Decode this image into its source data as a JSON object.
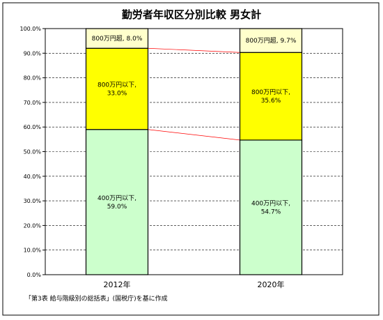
{
  "chart_data": {
    "type": "bar",
    "stacked": true,
    "title": "勤労者年収区分別比較 男女計",
    "categories": [
      "2012年",
      "2020年"
    ],
    "series": [
      {
        "name": "400万円以下",
        "color": "#ccffcc",
        "values": [
          59.0,
          54.7
        ],
        "labels": [
          "400万円以下,\n59.0%",
          "400万円以下,\n54.7%"
        ]
      },
      {
        "name": "800万円以下",
        "color": "#ffff00",
        "values": [
          33.0,
          35.6
        ],
        "labels": [
          "800万円以下,\n33.0%",
          "800万円以下,\n35.6%"
        ]
      },
      {
        "name": "800万円超",
        "color": "#ffffcc",
        "values": [
          8.0,
          9.7
        ],
        "labels": [
          "800万円超, 8.0%",
          "800万円超, 9.7%"
        ]
      }
    ],
    "y_ticks": [
      "0.0%",
      "10.0%",
      "20.0%",
      "30.0%",
      "40.0%",
      "50.0%",
      "60.0%",
      "70.0%",
      "80.0%",
      "90.0%",
      "100.0%"
    ],
    "ylim": [
      0,
      100
    ],
    "grid": true,
    "series_lines": true,
    "note": "「第3表 給与階級別の総括表」(国税庁)を基に作成"
  }
}
